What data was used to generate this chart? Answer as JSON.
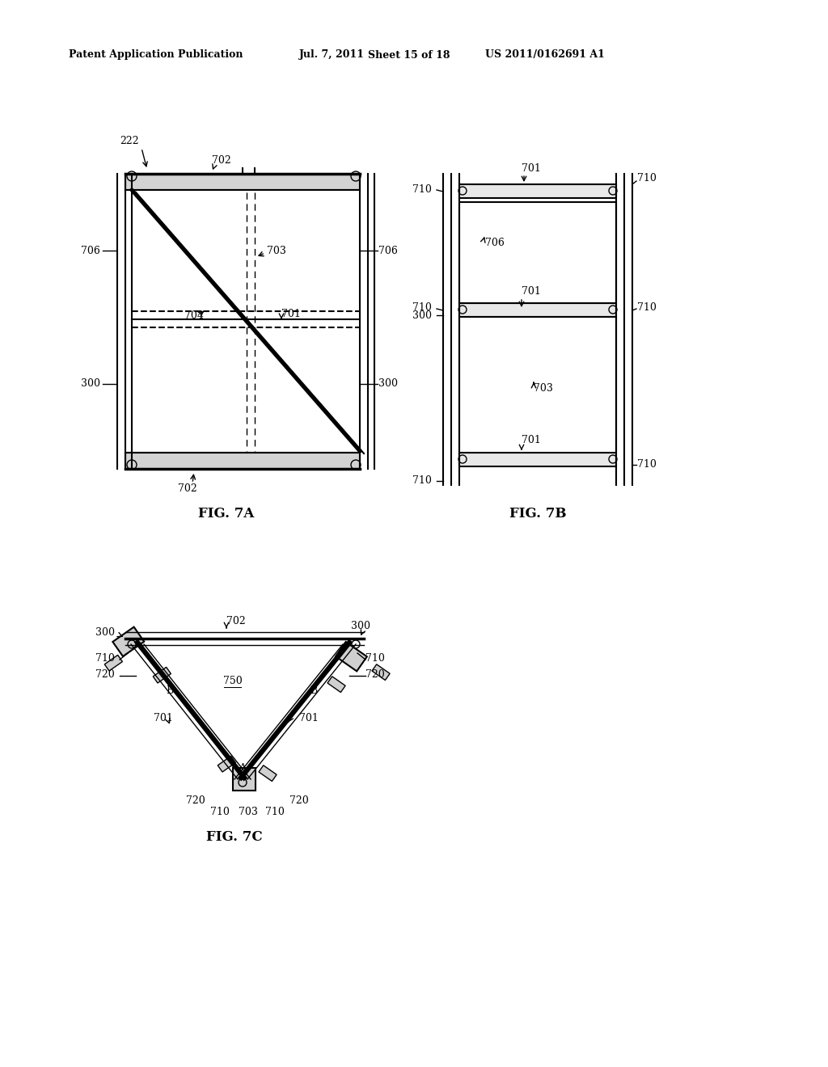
{
  "bg_color": "#ffffff",
  "header_text": "Patent Application Publication",
  "header_date": "Jul. 7, 2011",
  "header_sheet": "Sheet 15 of 18",
  "header_patent": "US 2011/0162691 A1",
  "fig7a_label": "FIG. 7A",
  "fig7b_label": "FIG. 7B",
  "fig7c_label": "FIG. 7C"
}
